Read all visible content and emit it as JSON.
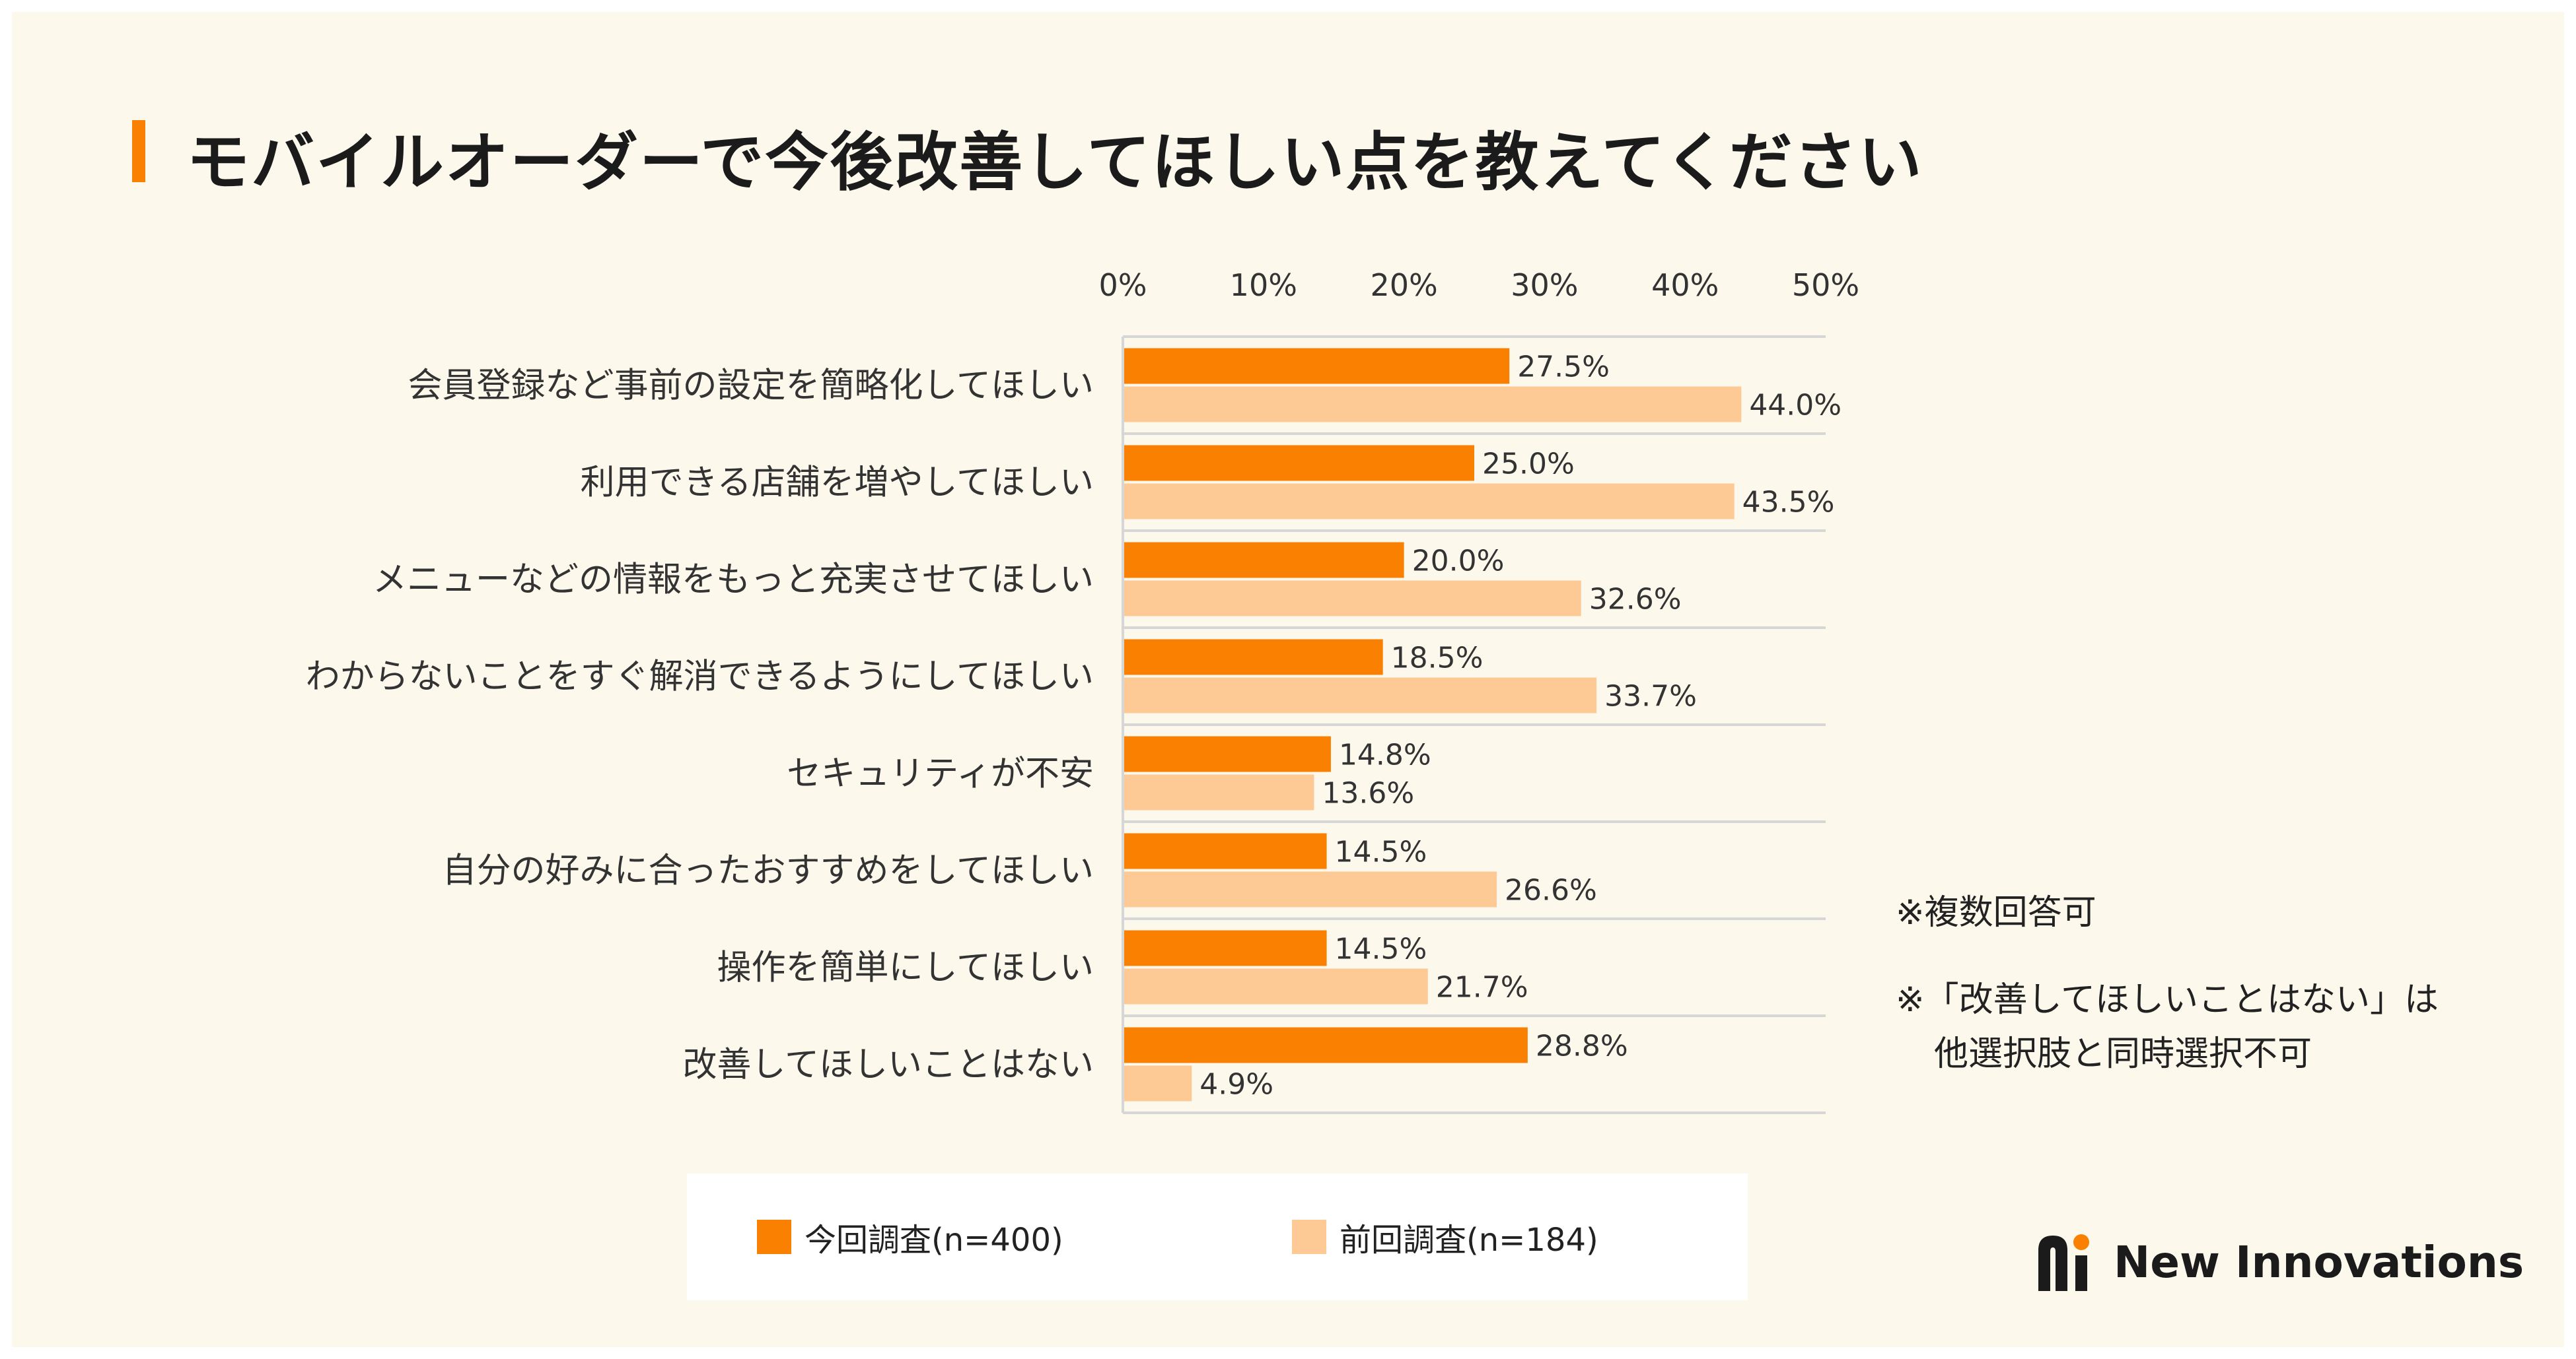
{
  "title": "モバイルオーダーで今後改善してほしい点を教えてください",
  "notes": [
    "※複数回答可",
    "※「改善してほしいことはない」は",
    "他選択肢と同時選択不可"
  ],
  "brand": {
    "name": "New Innovations",
    "logo_icon": "new-innovations-logo-icon"
  },
  "colors": {
    "current": "#f98000",
    "previous": "#fdc995",
    "accent": "#f98000"
  },
  "chart_data": {
    "type": "bar",
    "orientation": "horizontal",
    "xlim": [
      0,
      50
    ],
    "x_ticks": [
      "0%",
      "10%",
      "20%",
      "30%",
      "40%",
      "50%"
    ],
    "categories": [
      "会員登録など事前の設定を簡略化してほしい",
      "利用できる店舗を増やしてほしい",
      "メニューなどの情報をもっと充実させてほしい",
      "わからないことをすぐ解消できるようにしてほしい",
      "セキュリティが不安",
      "自分の好みに合ったおすすめをしてほしい",
      "操作を簡単にしてほしい",
      "改善してほしいことはない"
    ],
    "series": [
      {
        "name": "今回調査(n=400)",
        "values": [
          27.5,
          25.0,
          20.0,
          18.5,
          14.8,
          14.5,
          14.5,
          28.8
        ],
        "labels": [
          "27.5%",
          "25.0%",
          "20.0%",
          "18.5%",
          "14.8%",
          "14.5%",
          "14.5%",
          "28.8%"
        ]
      },
      {
        "name": "前回調査(n=184)",
        "values": [
          44.0,
          43.5,
          32.6,
          33.7,
          13.6,
          26.6,
          21.7,
          4.9
        ],
        "labels": [
          "44.0%",
          "43.5%",
          "32.6%",
          "33.7%",
          "13.6%",
          "26.6%",
          "21.7%",
          "4.9%"
        ]
      }
    ],
    "legend_position": "bottom"
  }
}
